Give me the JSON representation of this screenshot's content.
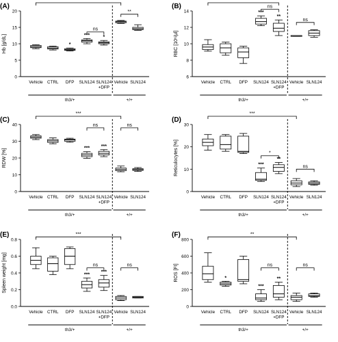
{
  "colors": {
    "box_fill": "#ffffff",
    "stroke": "#000000"
  },
  "chart_data": [
    {
      "panel_label": "(A)",
      "type": "box",
      "ylabel": "Hb [g/dL]",
      "ylim": [
        0,
        20
      ],
      "yticks": [
        "0",
        "5",
        "10",
        "15",
        "20"
      ],
      "ytick_values": [
        0,
        5,
        10,
        15,
        20
      ],
      "categories": [
        "Vehicle",
        "CTRL",
        "DFP",
        "SLN124",
        "SLN124 +DFP",
        "Vehicle",
        "SLN124"
      ],
      "cat_lines": [
        [
          "Vehicle"
        ],
        [
          "CTRL"
        ],
        [
          "DFP"
        ],
        [
          "SLN124"
        ],
        [
          "SLN124",
          "+DFP"
        ],
        [
          "Vehicle"
        ],
        [
          "SLN124"
        ]
      ],
      "groups": [
        {
          "label": "th3/+",
          "from": 0,
          "to": 4
        },
        {
          "label": "+/+",
          "from": 5,
          "to": 6
        }
      ],
      "boxes": [
        {
          "min": 8.5,
          "q1": 8.8,
          "median": 9.1,
          "q3": 9.5,
          "max": 9.7
        },
        {
          "min": 8.1,
          "q1": 8.4,
          "median": 8.7,
          "q3": 9.1,
          "max": 9.3
        },
        {
          "min": 7.8,
          "q1": 8.0,
          "median": 8.2,
          "q3": 8.5,
          "max": 8.7
        },
        {
          "min": 10.0,
          "q1": 10.5,
          "median": 10.9,
          "q3": 11.2,
          "max": 11.6
        },
        {
          "min": 9.6,
          "q1": 10.0,
          "median": 10.3,
          "q3": 10.6,
          "max": 11.0
        },
        {
          "min": 16.2,
          "q1": 16.4,
          "median": 16.7,
          "q3": 16.9,
          "max": 17.1
        },
        {
          "min": 14.1,
          "q1": 14.3,
          "median": 14.6,
          "q3": 15.0,
          "max": 15.8
        }
      ],
      "stars": [
        "",
        "",
        "*",
        "***",
        "*",
        "",
        ""
      ],
      "brackets": [
        {
          "from": 0,
          "to": 5,
          "y": 24.0,
          "label": "***"
        },
        {
          "from": 3,
          "to": 4,
          "y": 13.6,
          "label": "ns"
        },
        {
          "from": 5,
          "to": 6,
          "y": 19.0,
          "label": "**"
        }
      ]
    },
    {
      "panel_label": "(B)",
      "type": "box",
      "ylabel": "RBC [10⁶/μl]",
      "ylim": [
        6,
        14
      ],
      "yticks": [
        "6",
        "8",
        "10",
        "12",
        "14"
      ],
      "ytick_values": [
        6,
        8,
        10,
        12,
        14
      ],
      "categories": [
        "Vehicle",
        "CTRL",
        "DFP",
        "SLN124",
        "SLN124 +DFP",
        "Vehicle",
        "SLN124"
      ],
      "cat_lines": [
        [
          "Vehicle"
        ],
        [
          "CTRL"
        ],
        [
          "DFP"
        ],
        [
          "SLN124"
        ],
        [
          "SLN124",
          "+DFP"
        ],
        [
          "Vehicle"
        ],
        [
          "SLN124"
        ]
      ],
      "groups": [
        {
          "label": "th3/+",
          "from": 0,
          "to": 4
        },
        {
          "label": "+/+",
          "from": 5,
          "to": 6
        }
      ],
      "boxes": [
        {
          "min": 9.1,
          "q1": 9.3,
          "median": 9.6,
          "q3": 9.9,
          "max": 10.5
        },
        {
          "min": 8.6,
          "q1": 8.9,
          "median": 9.5,
          "q3": 10.0,
          "max": 10.2
        },
        {
          "min": 7.6,
          "q1": 8.3,
          "median": 9.0,
          "q3": 9.5,
          "max": 9.7
        },
        {
          "min": 12.2,
          "q1": 12.4,
          "median": 12.7,
          "q3": 13.1,
          "max": 13.4
        },
        {
          "min": 11.0,
          "q1": 11.5,
          "median": 11.9,
          "q3": 12.5,
          "max": 12.9
        },
        {
          "min": 10.9,
          "q1": 10.9,
          "median": 11.0,
          "q3": 11.0,
          "max": 11.0
        },
        {
          "min": 10.8,
          "q1": 11.0,
          "median": 11.3,
          "q3": 11.6,
          "max": 11.7
        }
      ],
      "stars": [
        "",
        "",
        "",
        "***",
        "**",
        "",
        ""
      ],
      "brackets": [
        {
          "from": 0,
          "to": 4,
          "y": 15.0,
          "label": "*"
        },
        {
          "from": 3,
          "to": 4,
          "y": 14.2,
          "label": "ns"
        },
        {
          "from": 5,
          "to": 6,
          "y": 12.6,
          "label": "ns"
        }
      ]
    },
    {
      "panel_label": "(C)",
      "type": "box",
      "ylabel": "RDW [%]",
      "ylim": [
        0,
        40
      ],
      "yticks": [
        "0",
        "10",
        "20",
        "30",
        "40"
      ],
      "ytick_values": [
        0,
        10,
        20,
        30,
        40
      ],
      "categories": [
        "Vehicle",
        "CTRL",
        "DFP",
        "SLN124",
        "SLN124 +DFP",
        "Vehicle",
        "SLN124"
      ],
      "cat_lines": [
        [
          "Vehicle"
        ],
        [
          "CTRL"
        ],
        [
          "DFP"
        ],
        [
          "SLN124"
        ],
        [
          "SLN124",
          "+DFP"
        ],
        [
          "Vehicle"
        ],
        [
          "SLN124"
        ]
      ],
      "groups": [
        {
          "label": "th3/+",
          "from": 0,
          "to": 4
        },
        {
          "label": "+/+",
          "from": 5,
          "to": 6
        }
      ],
      "boxes": [
        {
          "min": 31.0,
          "q1": 31.8,
          "median": 32.5,
          "q3": 33.2,
          "max": 34.0
        },
        {
          "min": 28.5,
          "q1": 29.3,
          "median": 30.2,
          "q3": 31.0,
          "max": 32.0
        },
        {
          "min": 29.4,
          "q1": 30.0,
          "median": 30.8,
          "q3": 31.3,
          "max": 31.8
        },
        {
          "min": 19.8,
          "q1": 20.8,
          "median": 21.8,
          "q3": 22.8,
          "max": 23.8
        },
        {
          "min": 20.8,
          "q1": 21.8,
          "median": 22.8,
          "q3": 24.0,
          "max": 25.0
        },
        {
          "min": 11.8,
          "q1": 12.4,
          "median": 13.2,
          "q3": 14.0,
          "max": 15.2
        },
        {
          "min": 12.0,
          "q1": 12.6,
          "median": 13.1,
          "q3": 13.6,
          "max": 14.3
        }
      ],
      "stars": [
        "",
        "",
        "",
        "***",
        "***",
        "",
        ""
      ],
      "brackets": [
        {
          "from": 0,
          "to": 5,
          "y": 46.0,
          "label": "***"
        },
        {
          "from": 3,
          "to": 4,
          "y": 38.0,
          "label": "ns"
        },
        {
          "from": 5,
          "to": 6,
          "y": 38.0,
          "label": "ns"
        }
      ]
    },
    {
      "panel_label": "(D)",
      "type": "box",
      "ylabel": "Reticulocytes [%]",
      "ylim": [
        0,
        30
      ],
      "yticks": [
        "0",
        "10",
        "20",
        "30"
      ],
      "ytick_values": [
        0,
        10,
        20,
        30
      ],
      "categories": [
        "Vehicle",
        "CTRL",
        "DFP",
        "SLN124",
        "SLN124 +DFP",
        "Vehicle",
        "SLN124"
      ],
      "cat_lines": [
        [
          "Vehicle"
        ],
        [
          "CTRL"
        ],
        [
          "DFP"
        ],
        [
          "SLN124"
        ],
        [
          "SLN124",
          "+DFP"
        ],
        [
          "Vehicle"
        ],
        [
          "SLN124"
        ]
      ],
      "groups": [
        {
          "label": "th3/+",
          "from": 0,
          "to": 4
        },
        {
          "label": "+/+",
          "from": 5,
          "to": 6
        }
      ],
      "boxes": [
        {
          "min": 18.5,
          "q1": 20.5,
          "median": 22.0,
          "q3": 23.5,
          "max": 25.5
        },
        {
          "min": 18.0,
          "q1": 19.0,
          "median": 21.0,
          "q3": 24.8,
          "max": 25.5
        },
        {
          "min": 17.0,
          "q1": 17.5,
          "median": 18.0,
          "q3": 24.8,
          "max": 26.0
        },
        {
          "min": 4.5,
          "q1": 5.0,
          "median": 5.5,
          "q3": 8.5,
          "max": 10.5
        },
        {
          "min": 8.0,
          "q1": 9.0,
          "median": 10.8,
          "q3": 12.0,
          "max": 13.0
        },
        {
          "min": 2.2,
          "q1": 3.0,
          "median": 3.8,
          "q3": 4.8,
          "max": 5.8
        },
        {
          "min": 2.8,
          "q1": 3.2,
          "median": 3.7,
          "q3": 4.3,
          "max": 4.8
        }
      ],
      "stars": [
        "",
        "",
        "",
        "***",
        "**",
        "",
        ""
      ],
      "brackets": [
        {
          "from": 0,
          "to": 5,
          "y": 34.0,
          "label": "***"
        },
        {
          "from": 3,
          "to": 4,
          "y": 16.0,
          "label": "*"
        },
        {
          "from": 5,
          "to": 6,
          "y": 10.0,
          "label": "ns"
        }
      ]
    },
    {
      "panel_label": "(E)",
      "type": "box",
      "ylabel": "Spleen weight [mg]",
      "ylim": [
        0,
        0.8
      ],
      "yticks": [
        "0.0",
        "0.2",
        "0.4",
        "0.6",
        "0.8"
      ],
      "ytick_values": [
        0,
        0.2,
        0.4,
        0.6,
        0.8
      ],
      "categories": [
        "Vehicle",
        "CTRL",
        "DFP",
        "SLN124",
        "SLN124 +DFP",
        "Vehicle",
        "SLN124"
      ],
      "cat_lines": [
        [
          "Vehicle"
        ],
        [
          "CTRL"
        ],
        [
          "DFP"
        ],
        [
          "SLN124"
        ],
        [
          "SLN124",
          "+DFP"
        ],
        [
          "Vehicle"
        ],
        [
          "SLN124"
        ]
      ],
      "groups": [
        {
          "label": "th3/+",
          "from": 0,
          "to": 4
        },
        {
          "label": "+/+",
          "from": 5,
          "to": 6
        }
      ],
      "boxes": [
        {
          "min": 0.45,
          "q1": 0.5,
          "median": 0.55,
          "q3": 0.6,
          "max": 0.7
        },
        {
          "min": 0.38,
          "q1": 0.42,
          "median": 0.51,
          "q3": 0.58,
          "max": 0.6
        },
        {
          "min": 0.45,
          "q1": 0.5,
          "median": 0.6,
          "q3": 0.69,
          "max": 0.71
        },
        {
          "min": 0.18,
          "q1": 0.22,
          "median": 0.26,
          "q3": 0.3,
          "max": 0.34
        },
        {
          "min": 0.19,
          "q1": 0.23,
          "median": 0.28,
          "q3": 0.32,
          "max": 0.37
        },
        {
          "min": 0.07,
          "q1": 0.08,
          "median": 0.1,
          "q3": 0.12,
          "max": 0.13
        },
        {
          "min": 0.1,
          "q1": 0.1,
          "median": 0.11,
          "q3": 0.12,
          "max": 0.12
        }
      ],
      "stars": [
        "",
        "",
        "",
        "***",
        "***",
        "",
        ""
      ],
      "brackets": [
        {
          "from": 0,
          "to": 5,
          "y": 0.83,
          "label": "***"
        },
        {
          "from": 3,
          "to": 4,
          "y": 0.46,
          "label": "ns"
        },
        {
          "from": 5,
          "to": 6,
          "y": 0.46,
          "label": "ns"
        }
      ]
    },
    {
      "panel_label": "(F)",
      "type": "box",
      "ylabel": "ROS [FI]",
      "ylim": [
        0,
        800
      ],
      "yticks": [
        "0",
        "200",
        "400",
        "600",
        "800"
      ],
      "ytick_values": [
        0,
        200,
        400,
        600,
        800
      ],
      "categories": [
        "Vehicle",
        "CTRL",
        "DFP",
        "SLN124",
        "SLN124 +DFP",
        "Vehicle",
        "SLN124"
      ],
      "cat_lines": [
        [
          "Vehicle"
        ],
        [
          "CTRL"
        ],
        [
          "DFP"
        ],
        [
          "SLN124"
        ],
        [
          "SLN124",
          "+DFP"
        ],
        [
          "Vehicle"
        ],
        [
          "SLN124"
        ]
      ],
      "groups": [
        {
          "label": "th3/+",
          "from": 0,
          "to": 4
        },
        {
          "label": "+/+",
          "from": 5,
          "to": 6
        }
      ],
      "boxes": [
        {
          "min": 290,
          "q1": 320,
          "median": 390,
          "q3": 480,
          "max": 640
        },
        {
          "min": 240,
          "q1": 255,
          "median": 270,
          "q3": 290,
          "max": 300
        },
        {
          "min": 270,
          "q1": 300,
          "median": 320,
          "q3": 560,
          "max": 600
        },
        {
          "min": 60,
          "q1": 80,
          "median": 100,
          "q3": 150,
          "max": 200
        },
        {
          "min": 80,
          "q1": 110,
          "median": 150,
          "q3": 250,
          "max": 290
        },
        {
          "min": 60,
          "q1": 80,
          "median": 110,
          "q3": 130,
          "max": 160
        },
        {
          "min": 110,
          "q1": 120,
          "median": 130,
          "q3": 150,
          "max": 160
        }
      ],
      "stars": [
        "",
        "*",
        "",
        "***",
        "**",
        "",
        ""
      ],
      "brackets": [
        {
          "from": 0,
          "to": 5,
          "y": 830,
          "label": "**"
        },
        {
          "from": 3,
          "to": 4,
          "y": 460,
          "label": "ns"
        },
        {
          "from": 5,
          "to": 6,
          "y": 460,
          "label": "ns"
        }
      ]
    }
  ]
}
